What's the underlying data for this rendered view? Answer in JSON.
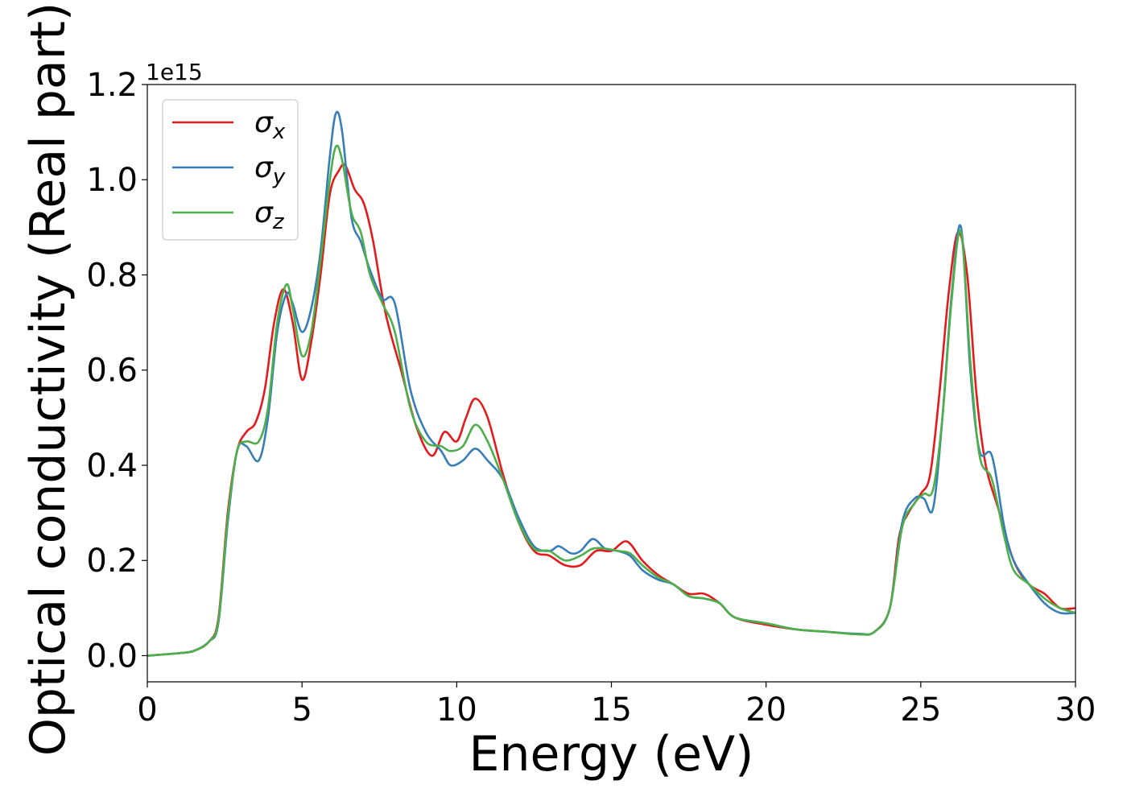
{
  "chart_data": {
    "type": "line",
    "xlabel": "Energy (eV)",
    "ylabel": "Optical conductivity (Real part)",
    "y_offset_text": "1e15",
    "xlim": [
      0,
      30
    ],
    "ylim": [
      -0.055,
      1.2
    ],
    "xticks": [
      0,
      5,
      10,
      15,
      20,
      25,
      30
    ],
    "xtick_labels": [
      "0",
      "5",
      "10",
      "15",
      "20",
      "25",
      "30"
    ],
    "yticks": [
      0.0,
      0.2,
      0.4,
      0.6,
      0.8,
      1.0,
      1.2
    ],
    "ytick_labels": [
      "0.0",
      "0.2",
      "0.4",
      "0.6",
      "0.8",
      "1.0",
      "1.2"
    ],
    "grid": false,
    "legend_position": "top-left",
    "series": [
      {
        "name": "σ",
        "subscript": "x",
        "color": "#e41a1c",
        "x": [
          0,
          1,
          1.5,
          2,
          2.3,
          2.6,
          2.9,
          3.2,
          3.5,
          3.8,
          4.1,
          4.4,
          4.7,
          5.0,
          5.3,
          5.6,
          5.9,
          6.2,
          6.4,
          6.7,
          7.0,
          7.3,
          7.7,
          8.2,
          8.7,
          9.2,
          9.6,
          10.0,
          10.3,
          10.6,
          11.0,
          11.5,
          12.0,
          12.5,
          13.0,
          13.5,
          14.0,
          14.5,
          15.0,
          15.5,
          16.0,
          16.5,
          17.0,
          17.5,
          18.0,
          18.5,
          19.0,
          20.0,
          21.0,
          22.0,
          23.0,
          23.5,
          24.0,
          24.3,
          24.6,
          25.0,
          25.3,
          25.6,
          25.9,
          26.2,
          26.5,
          26.8,
          27.1,
          27.5,
          28.0,
          28.5,
          29.0,
          29.5,
          30.0
        ],
        "y": [
          0.0,
          0.005,
          0.01,
          0.03,
          0.08,
          0.3,
          0.43,
          0.47,
          0.49,
          0.56,
          0.7,
          0.77,
          0.7,
          0.58,
          0.66,
          0.8,
          0.97,
          1.02,
          1.03,
          0.98,
          0.95,
          0.87,
          0.72,
          0.6,
          0.48,
          0.42,
          0.47,
          0.45,
          0.5,
          0.54,
          0.5,
          0.38,
          0.28,
          0.22,
          0.21,
          0.19,
          0.19,
          0.22,
          0.22,
          0.24,
          0.2,
          0.17,
          0.15,
          0.13,
          0.13,
          0.11,
          0.08,
          0.065,
          0.055,
          0.05,
          0.045,
          0.05,
          0.1,
          0.25,
          0.3,
          0.34,
          0.38,
          0.55,
          0.76,
          0.89,
          0.8,
          0.55,
          0.4,
          0.31,
          0.2,
          0.15,
          0.13,
          0.1,
          0.1
        ]
      },
      {
        "name": "σ",
        "subscript": "y",
        "color": "#377eb8",
        "x": [
          0,
          1,
          1.5,
          2,
          2.3,
          2.6,
          2.9,
          3.2,
          3.6,
          3.9,
          4.2,
          4.5,
          4.7,
          5.0,
          5.3,
          5.6,
          5.9,
          6.1,
          6.3,
          6.6,
          6.9,
          7.2,
          7.6,
          8.0,
          8.5,
          9.0,
          9.5,
          9.8,
          10.2,
          10.6,
          11.0,
          11.5,
          12.0,
          12.5,
          13.0,
          13.3,
          13.7,
          14.0,
          14.4,
          14.8,
          15.2,
          15.6,
          16.0,
          16.5,
          17.0,
          17.5,
          18.0,
          18.5,
          19.0,
          20.0,
          21.0,
          22.0,
          23.0,
          23.5,
          24.0,
          24.4,
          24.8,
          25.1,
          25.4,
          25.7,
          26.0,
          26.3,
          26.6,
          26.9,
          27.3,
          27.7,
          28.0,
          28.5,
          29.0,
          29.5,
          30.0
        ],
        "y": [
          0.0,
          0.005,
          0.01,
          0.03,
          0.07,
          0.28,
          0.43,
          0.44,
          0.41,
          0.5,
          0.68,
          0.76,
          0.74,
          0.68,
          0.73,
          0.85,
          1.05,
          1.14,
          1.1,
          0.92,
          0.87,
          0.81,
          0.75,
          0.74,
          0.56,
          0.47,
          0.43,
          0.4,
          0.41,
          0.435,
          0.41,
          0.37,
          0.29,
          0.23,
          0.22,
          0.23,
          0.215,
          0.22,
          0.245,
          0.225,
          0.22,
          0.21,
          0.18,
          0.16,
          0.15,
          0.125,
          0.12,
          0.11,
          0.08,
          0.068,
          0.055,
          0.05,
          0.046,
          0.05,
          0.1,
          0.28,
          0.33,
          0.33,
          0.31,
          0.5,
          0.76,
          0.9,
          0.6,
          0.43,
          0.42,
          0.27,
          0.2,
          0.15,
          0.11,
          0.09,
          0.09
        ]
      },
      {
        "name": "σ",
        "subscript": "z",
        "color": "#4daf4a",
        "x": [
          0,
          1,
          1.5,
          2,
          2.3,
          2.6,
          2.9,
          3.2,
          3.6,
          3.9,
          4.2,
          4.5,
          4.7,
          5.0,
          5.3,
          5.6,
          5.9,
          6.1,
          6.3,
          6.6,
          6.9,
          7.2,
          7.6,
          8.0,
          8.5,
          9.0,
          9.5,
          9.8,
          10.2,
          10.6,
          11.0,
          11.5,
          12.0,
          12.5,
          13.0,
          13.5,
          14.0,
          14.4,
          14.8,
          15.2,
          15.6,
          16.0,
          16.5,
          17.0,
          17.5,
          18.0,
          18.5,
          19.0,
          20.0,
          21.0,
          22.0,
          23.0,
          23.5,
          24.0,
          24.4,
          24.8,
          25.1,
          25.4,
          25.7,
          26.0,
          26.3,
          26.6,
          26.9,
          27.3,
          27.7,
          28.0,
          28.5,
          29.0,
          29.5,
          30.0
        ],
        "y": [
          0.0,
          0.005,
          0.01,
          0.03,
          0.075,
          0.29,
          0.43,
          0.45,
          0.45,
          0.52,
          0.7,
          0.78,
          0.73,
          0.63,
          0.68,
          0.83,
          1.0,
          1.07,
          1.04,
          0.93,
          0.89,
          0.8,
          0.74,
          0.68,
          0.52,
          0.45,
          0.44,
          0.43,
          0.44,
          0.485,
          0.45,
          0.37,
          0.28,
          0.225,
          0.22,
          0.2,
          0.21,
          0.225,
          0.225,
          0.22,
          0.215,
          0.19,
          0.165,
          0.15,
          0.125,
          0.12,
          0.11,
          0.08,
          0.068,
          0.055,
          0.05,
          0.045,
          0.05,
          0.1,
          0.27,
          0.32,
          0.34,
          0.35,
          0.5,
          0.75,
          0.89,
          0.62,
          0.42,
          0.37,
          0.25,
          0.18,
          0.15,
          0.12,
          0.1,
          0.09
        ]
      }
    ]
  }
}
